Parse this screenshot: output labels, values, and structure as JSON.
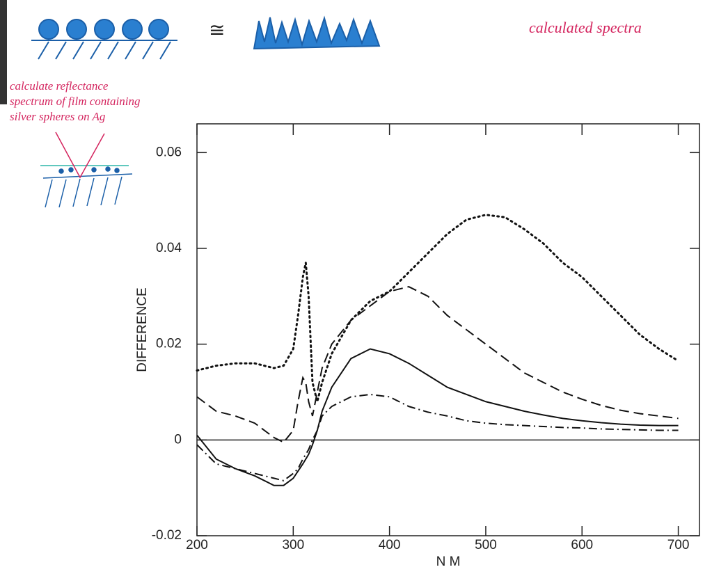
{
  "chart_data": {
    "type": "line",
    "annotations": [
      "calculated spectra",
      "calculate reflectance",
      "spectrum of film containing",
      "silver spheres on Ag"
    ],
    "xlabel": "N M",
    "ylabel": "DIFFERENCE",
    "x": [
      200,
      220,
      240,
      260,
      280,
      290,
      300,
      305,
      310,
      313,
      316,
      320,
      325,
      330,
      340,
      360,
      380,
      400,
      420,
      440,
      460,
      480,
      500,
      520,
      540,
      560,
      580,
      600,
      620,
      640,
      660,
      680,
      700
    ],
    "series": [
      {
        "color": "#111",
        "dash": "dotted",
        "values": [
          0.0145,
          0.0155,
          0.016,
          0.016,
          0.015,
          0.0155,
          0.019,
          0.026,
          0.034,
          0.037,
          0.03,
          0.012,
          0.008,
          0.012,
          0.018,
          0.025,
          0.029,
          0.031,
          0.035,
          0.039,
          0.043,
          0.046,
          0.047,
          0.0465,
          0.044,
          0.041,
          0.037,
          0.034,
          0.03,
          0.026,
          0.022,
          0.019,
          0.0165
        ]
      },
      {
        "color": "#111",
        "dash": "dashed",
        "values": [
          0.009,
          0.006,
          0.005,
          0.0035,
          0.0005,
          -0.0005,
          0.002,
          0.008,
          0.013,
          0.012,
          0.008,
          0.005,
          0.01,
          0.015,
          0.02,
          0.025,
          0.028,
          0.031,
          0.032,
          0.03,
          0.026,
          0.023,
          0.02,
          0.017,
          0.014,
          0.012,
          0.01,
          0.0085,
          0.0072,
          0.0062,
          0.0055,
          0.005,
          0.0045
        ]
      },
      {
        "color": "#111",
        "dash": "solid",
        "values": [
          0.001,
          -0.004,
          -0.006,
          -0.0075,
          -0.0095,
          -0.0095,
          -0.008,
          -0.0065,
          -0.005,
          -0.004,
          -0.003,
          -0.001,
          0.002,
          0.006,
          0.011,
          0.017,
          0.019,
          0.018,
          0.016,
          0.0135,
          0.011,
          0.0095,
          0.008,
          0.007,
          0.006,
          0.0052,
          0.0045,
          0.004,
          0.0036,
          0.0033,
          0.0031,
          0.003,
          0.003
        ]
      },
      {
        "color": "#111",
        "dash": "dashdot",
        "values": [
          -0.001,
          -0.005,
          -0.006,
          -0.007,
          -0.008,
          -0.0085,
          -0.007,
          -0.006,
          -0.004,
          -0.003,
          -0.002,
          0,
          0.002,
          0.005,
          0.007,
          0.009,
          0.0095,
          0.009,
          0.007,
          0.0058,
          0.005,
          0.004,
          0.0035,
          0.0032,
          0.003,
          0.0028,
          0.0026,
          0.0025,
          0.0023,
          0.0022,
          0.0021,
          0.002,
          0.002
        ]
      }
    ],
    "reference_line": 0,
    "xlim": [
      200,
      722
    ],
    "xticks": [
      200,
      300,
      400,
      500,
      600,
      700
    ],
    "ylim": [
      -0.02,
      0.066
    ],
    "yticks": [
      -0.02,
      0,
      0.02,
      0.04,
      0.06
    ]
  }
}
